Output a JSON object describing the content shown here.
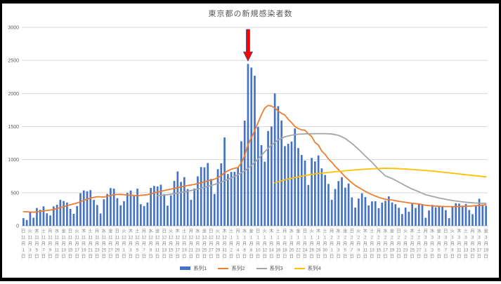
{
  "title": "東京都の新規感染者数",
  "legend": {
    "items": [
      {
        "label": "系列1",
        "color": "#4472C4",
        "marker": "bar"
      },
      {
        "label": "系列2",
        "color": "#ED7D31",
        "marker": "line"
      },
      {
        "label": "系列3",
        "color": "#A5A5A5",
        "marker": "line"
      },
      {
        "label": "系列4",
        "color": "#FFC000",
        "marker": "line"
      }
    ]
  },
  "chart_data": {
    "type": "bar+line",
    "title": "東京都の新規感染者数",
    "ylim": [
      0,
      3000
    ],
    "yticks": [
      0,
      500,
      1000,
      1500,
      2000,
      2500,
      3000
    ],
    "grid": "horizontal-only",
    "legend_position": "bottom-center",
    "x_note": "daily categories 11月1日〜3月19日, tick labels every 2 days as day-of-week over vertical date",
    "colors": {
      "grid": "#D9D9D9",
      "axis_line": "#BFBFBF",
      "tick_separator": "#E2E2E2",
      "y_label": "#595959",
      "x_label": "#808080",
      "title": "#595959",
      "frame": "#000000",
      "background": "#FFFFFF"
    },
    "tick_labels": [
      [
        "日",
        11,
        1
      ],
      [
        "火",
        11,
        3
      ],
      [
        "木",
        11,
        5
      ],
      [
        "土",
        11,
        7
      ],
      [
        "月",
        11,
        9
      ],
      [
        "水",
        11,
        11
      ],
      [
        "金",
        11,
        13
      ],
      [
        "日",
        11,
        15
      ],
      [
        "火",
        11,
        17
      ],
      [
        "木",
        11,
        19
      ],
      [
        "土",
        11,
        21
      ],
      [
        "月",
        11,
        23
      ],
      [
        "水",
        11,
        25
      ],
      [
        "金",
        11,
        27
      ],
      [
        "日",
        11,
        29
      ],
      [
        "火",
        12,
        1
      ],
      [
        "木",
        12,
        3
      ],
      [
        "土",
        12,
        5
      ],
      [
        "月",
        12,
        7
      ],
      [
        "水",
        12,
        9
      ],
      [
        "金",
        12,
        11
      ],
      [
        "日",
        12,
        13
      ],
      [
        "火",
        12,
        15
      ],
      [
        "木",
        12,
        17
      ],
      [
        "土",
        12,
        19
      ],
      [
        "月",
        12,
        21
      ],
      [
        "水",
        12,
        23
      ],
      [
        "金",
        12,
        25
      ],
      [
        "日",
        12,
        27
      ],
      [
        "火",
        12,
        29
      ],
      [
        "木",
        12,
        31
      ],
      [
        "土",
        1,
        2
      ],
      [
        "月",
        1,
        4
      ],
      [
        "水",
        1,
        6
      ],
      [
        "金",
        1,
        8
      ],
      [
        "日",
        1,
        10
      ],
      [
        "火",
        1,
        12
      ],
      [
        "木",
        1,
        14
      ],
      [
        "土",
        1,
        16
      ],
      [
        "月",
        1,
        18
      ],
      [
        "水",
        1,
        20
      ],
      [
        "金",
        1,
        22
      ],
      [
        "日",
        1,
        24
      ],
      [
        "火",
        1,
        26
      ],
      [
        "木",
        1,
        28
      ],
      [
        "土",
        1,
        30
      ],
      [
        "月",
        2,
        1
      ],
      [
        "水",
        2,
        3
      ],
      [
        "金",
        2,
        5
      ],
      [
        "日",
        2,
        7
      ],
      [
        "火",
        2,
        9
      ],
      [
        "木",
        2,
        11
      ],
      [
        "土",
        2,
        13
      ],
      [
        "月",
        2,
        15
      ],
      [
        "水",
        2,
        17
      ],
      [
        "金",
        2,
        19
      ],
      [
        "日",
        2,
        21
      ],
      [
        "火",
        2,
        23
      ],
      [
        "木",
        2,
        25
      ],
      [
        "土",
        2,
        27
      ],
      [
        "月",
        3,
        1
      ],
      [
        "水",
        3,
        3
      ],
      [
        "金",
        3,
        5
      ],
      [
        "日",
        3,
        7
      ],
      [
        "火",
        3,
        9
      ],
      [
        "木",
        3,
        11
      ],
      [
        "土",
        3,
        13
      ],
      [
        "月",
        3,
        15
      ],
      [
        "水",
        3,
        17
      ],
      [
        "金",
        3,
        19
      ]
    ],
    "series": [
      {
        "name": "系列1",
        "type": "bar",
        "color": "#4472C4",
        "values": [
          116,
          87,
          209,
          122,
          269,
          242,
          294,
          189,
          157,
          293,
          317,
          393,
          374,
          352,
          255,
          180,
          298,
          493,
          534,
          522,
          539,
          391,
          314,
          186,
          401,
          481,
          570,
          561,
          418,
          311,
          372,
          500,
          533,
          449,
          561,
          327,
          299,
          352,
          572,
          602,
          595,
          621,
          480,
          305,
          460,
          678,
          822,
          664,
          736,
          556,
          392,
          563,
          748,
          888,
          884,
          949,
          708,
          481,
          856,
          944,
          1337,
          783,
          814,
          816,
          884,
          1278,
          1591,
          2447,
          2392,
          2268,
          1494,
          1219,
          970,
          1433,
          1502,
          2001,
          1809,
          1592,
          1204,
          1240,
          1274,
          1471,
          1175,
          1070,
          986,
          618,
          1026,
          973,
          1064,
          868,
          769,
          633,
          393,
          556,
          676,
          734,
          577,
          639,
          429,
          276,
          412,
          491,
          434,
          307,
          369,
          371,
          266,
          350,
          378,
          445,
          353,
          327,
          272,
          178,
          275,
          213,
          340,
          270,
          337,
          329,
          121,
          232,
          316,
          279,
          301,
          293,
          237,
          116,
          290,
          340,
          335,
          304,
          330,
          239,
          175,
          300,
          409,
          323,
          303
        ]
      },
      {
        "name": "系列2",
        "type": "line",
        "color": "#ED7D31",
        "points": [
          [
            0,
            215
          ],
          [
            3,
            205
          ],
          [
            6,
            225
          ],
          [
            9,
            245
          ],
          [
            13,
            305
          ],
          [
            16,
            345
          ],
          [
            18,
            385
          ],
          [
            20,
            420
          ],
          [
            22,
            440
          ],
          [
            24,
            435
          ],
          [
            27,
            470
          ],
          [
            29,
            475
          ],
          [
            31,
            465
          ],
          [
            34,
            455
          ],
          [
            37,
            470
          ],
          [
            40,
            510
          ],
          [
            43,
            545
          ],
          [
            46,
            575
          ],
          [
            48,
            600
          ],
          [
            51,
            625
          ],
          [
            54,
            665
          ],
          [
            57,
            705
          ],
          [
            59,
            755
          ],
          [
            60,
            805
          ],
          [
            61,
            830
          ],
          [
            62,
            855
          ],
          [
            63,
            870
          ],
          [
            64,
            880
          ],
          [
            65,
            950
          ],
          [
            66,
            1060
          ],
          [
            67,
            1230
          ],
          [
            68,
            1330
          ],
          [
            69,
            1440
          ],
          [
            70,
            1560
          ],
          [
            71,
            1680
          ],
          [
            72,
            1780
          ],
          [
            73,
            1820
          ],
          [
            74,
            1810
          ],
          [
            75,
            1780
          ],
          [
            76,
            1735
          ],
          [
            77,
            1700
          ],
          [
            78,
            1675
          ],
          [
            79,
            1610
          ],
          [
            80,
            1560
          ],
          [
            81,
            1500
          ],
          [
            82,
            1470
          ],
          [
            83,
            1450
          ],
          [
            84,
            1445
          ],
          [
            85,
            1390
          ],
          [
            86,
            1350
          ],
          [
            87,
            1260
          ],
          [
            88,
            1220
          ],
          [
            89,
            1130
          ],
          [
            90,
            1080
          ],
          [
            91,
            1010
          ],
          [
            92,
            960
          ],
          [
            93,
            900
          ],
          [
            94,
            850
          ],
          [
            95,
            795
          ],
          [
            96,
            740
          ],
          [
            97,
            695
          ],
          [
            98,
            650
          ],
          [
            99,
            610
          ],
          [
            100,
            580
          ],
          [
            101,
            550
          ],
          [
            102,
            520
          ],
          [
            103,
            495
          ],
          [
            104,
            470
          ],
          [
            105,
            450
          ],
          [
            106,
            430
          ],
          [
            107,
            415
          ],
          [
            108,
            400
          ],
          [
            110,
            390
          ],
          [
            112,
            370
          ],
          [
            114,
            355
          ],
          [
            116,
            340
          ],
          [
            118,
            330
          ],
          [
            120,
            310
          ],
          [
            122,
            300
          ],
          [
            124,
            295
          ],
          [
            126,
            290
          ],
          [
            128,
            290
          ],
          [
            130,
            292
          ],
          [
            132,
            295
          ],
          [
            134,
            300
          ],
          [
            136,
            308
          ],
          [
            138,
            318
          ]
        ]
      },
      {
        "name": "系列3",
        "type": "line",
        "color": "#A5A5A5",
        "points": [
          [
            40,
            455
          ],
          [
            43,
            470
          ],
          [
            46,
            495
          ],
          [
            49,
            522
          ],
          [
            52,
            555
          ],
          [
            55,
            595
          ],
          [
            58,
            640
          ],
          [
            61,
            700
          ],
          [
            64,
            770
          ],
          [
            66,
            830
          ],
          [
            68,
            910
          ],
          [
            70,
            1010
          ],
          [
            72,
            1120
          ],
          [
            74,
            1220
          ],
          [
            76,
            1300
          ],
          [
            78,
            1345
          ],
          [
            80,
            1370
          ],
          [
            82,
            1385
          ],
          [
            84,
            1390
          ],
          [
            86,
            1392
          ],
          [
            88,
            1393
          ],
          [
            90,
            1393
          ],
          [
            92,
            1388
          ],
          [
            94,
            1368
          ],
          [
            96,
            1320
          ],
          [
            98,
            1245
          ],
          [
            100,
            1155
          ],
          [
            102,
            1055
          ],
          [
            104,
            960
          ],
          [
            106,
            850
          ],
          [
            108,
            755
          ],
          [
            110,
            715
          ],
          [
            112,
            660
          ],
          [
            114,
            605
          ],
          [
            116,
            555
          ],
          [
            118,
            515
          ],
          [
            120,
            470
          ],
          [
            122,
            445
          ],
          [
            124,
            420
          ],
          [
            126,
            400
          ],
          [
            128,
            382
          ],
          [
            130,
            368
          ],
          [
            132,
            356
          ],
          [
            134,
            348
          ],
          [
            136,
            342
          ],
          [
            138,
            338
          ]
        ]
      },
      {
        "name": "系列4",
        "type": "line",
        "color": "#FFC000",
        "points": [
          [
            75,
            650
          ],
          [
            78,
            695
          ],
          [
            81,
            730
          ],
          [
            84,
            760
          ],
          [
            87,
            785
          ],
          [
            90,
            802
          ],
          [
            93,
            818
          ],
          [
            96,
            832
          ],
          [
            99,
            845
          ],
          [
            102,
            856
          ],
          [
            105,
            864
          ],
          [
            108,
            870
          ],
          [
            111,
            866
          ],
          [
            114,
            858
          ],
          [
            117,
            848
          ],
          [
            120,
            836
          ],
          [
            123,
            822
          ],
          [
            126,
            806
          ],
          [
            129,
            790
          ],
          [
            132,
            772
          ],
          [
            135,
            756
          ],
          [
            138,
            740
          ]
        ]
      }
    ],
    "annotation": {
      "shape": "block-arrow-down",
      "fill": "#FF0000",
      "outline": "#2F5597",
      "day_index": 67,
      "points_at_value": 2447
    }
  }
}
